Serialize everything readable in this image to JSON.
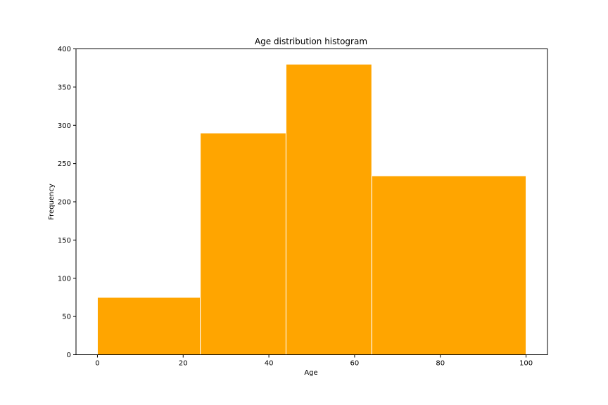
{
  "chart_data": {
    "type": "bar",
    "variant": "histogram",
    "title": "Age distribution histogram",
    "xlabel": "Age",
    "ylabel": "Frequency",
    "xlim": [
      -5,
      105
    ],
    "ylim": [
      0,
      400
    ],
    "grid": false,
    "bar_color": "#FFA500",
    "edge_color": "#FFFFFF",
    "bins": [
      {
        "x0": 0,
        "x1": 24,
        "value": 75
      },
      {
        "x0": 24,
        "x1": 44,
        "value": 290
      },
      {
        "x0": 44,
        "x1": 64,
        "value": 380
      },
      {
        "x0": 64,
        "x1": 100,
        "value": 234
      }
    ],
    "x_ticks": [
      {
        "value": 0,
        "label": "0"
      },
      {
        "value": 20,
        "label": "20"
      },
      {
        "value": 40,
        "label": "40"
      },
      {
        "value": 60,
        "label": "60"
      },
      {
        "value": 80,
        "label": "80"
      },
      {
        "value": 100,
        "label": "100"
      }
    ],
    "y_ticks": [
      {
        "value": 0,
        "label": "0"
      },
      {
        "value": 50,
        "label": "50"
      },
      {
        "value": 100,
        "label": "100"
      },
      {
        "value": 150,
        "label": "150"
      },
      {
        "value": 200,
        "label": "200"
      },
      {
        "value": 250,
        "label": "250"
      },
      {
        "value": 300,
        "label": "300"
      },
      {
        "value": 350,
        "label": "350"
      },
      {
        "value": 400,
        "label": "400"
      }
    ]
  }
}
